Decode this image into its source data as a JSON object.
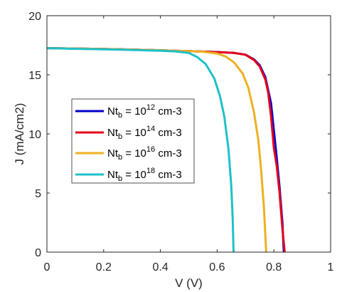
{
  "chart_data": {
    "type": "line",
    "xlabel": "V (V)",
    "ylabel": "J (mA/cm2)",
    "xlim": [
      0,
      1
    ],
    "ylim": [
      0,
      20
    ],
    "xticks": [
      "0",
      "0.2",
      "0.4",
      "0.6",
      "0.8",
      "1"
    ],
    "yticks": [
      "0",
      "5",
      "10",
      "15",
      "20"
    ],
    "grid": false,
    "legend_position": "center-left",
    "series": [
      {
        "name": "Nt_b = 10^12 cm-3",
        "legend": {
          "base": "Nt",
          "sub": "b",
          "eq": " = 10",
          "sup": "12",
          "unit": " cm-3"
        },
        "color": "#0000cc",
        "points": [
          [
            0,
            17.25
          ],
          [
            0.1,
            17.22
          ],
          [
            0.2,
            17.18
          ],
          [
            0.3,
            17.13
          ],
          [
            0.4,
            17.07
          ],
          [
            0.5,
            17.0
          ],
          [
            0.6,
            16.92
          ],
          [
            0.66,
            16.85
          ],
          [
            0.7,
            16.7
          ],
          [
            0.73,
            16.3
          ],
          [
            0.75,
            15.8
          ],
          [
            0.77,
            14.8
          ],
          [
            0.79,
            12.6
          ],
          [
            0.8,
            10.3
          ],
          [
            0.81,
            8.0
          ],
          [
            0.82,
            5.5
          ],
          [
            0.83,
            2.5
          ],
          [
            0.835,
            0
          ]
        ]
      },
      {
        "name": "Nt_b = 10^14 cm-3",
        "legend": {
          "base": "Nt",
          "sub": "b",
          "eq": " = 10",
          "sup": "14",
          "unit": " cm-3"
        },
        "color": "#e6001a",
        "points": [
          [
            0,
            17.25
          ],
          [
            0.1,
            17.22
          ],
          [
            0.2,
            17.18
          ],
          [
            0.3,
            17.13
          ],
          [
            0.4,
            17.07
          ],
          [
            0.5,
            17.0
          ],
          [
            0.6,
            16.92
          ],
          [
            0.66,
            16.85
          ],
          [
            0.7,
            16.7
          ],
          [
            0.73,
            16.25
          ],
          [
            0.75,
            15.7
          ],
          [
            0.77,
            14.6
          ],
          [
            0.78,
            13.5
          ],
          [
            0.79,
            11.5
          ],
          [
            0.8,
            8.8
          ],
          [
            0.81,
            7.3
          ],
          [
            0.82,
            5.0
          ],
          [
            0.83,
            2.0
          ],
          [
            0.838,
            0
          ]
        ]
      },
      {
        "name": "Nt_b = 10^16 cm-3",
        "legend": {
          "base": "Nt",
          "sub": "b",
          "eq": " = 10",
          "sup": "16",
          "unit": " cm-3"
        },
        "color": "#edb120",
        "points": [
          [
            0,
            17.25
          ],
          [
            0.1,
            17.22
          ],
          [
            0.2,
            17.18
          ],
          [
            0.3,
            17.13
          ],
          [
            0.4,
            17.07
          ],
          [
            0.5,
            17.0
          ],
          [
            0.55,
            16.95
          ],
          [
            0.6,
            16.8
          ],
          [
            0.63,
            16.55
          ],
          [
            0.66,
            16.05
          ],
          [
            0.69,
            15.1
          ],
          [
            0.71,
            13.9
          ],
          [
            0.73,
            11.8
          ],
          [
            0.745,
            9.5
          ],
          [
            0.755,
            7.0
          ],
          [
            0.765,
            3.8
          ],
          [
            0.773,
            0
          ]
        ]
      },
      {
        "name": "Nt_b = 10^18 cm-3",
        "legend": {
          "base": "Nt",
          "sub": "b",
          "eq": " = 10",
          "sup": "18",
          "unit": " cm-3"
        },
        "color": "#1ec0c8",
        "points": [
          [
            0,
            17.25
          ],
          [
            0.1,
            17.2
          ],
          [
            0.2,
            17.15
          ],
          [
            0.3,
            17.1
          ],
          [
            0.4,
            17.03
          ],
          [
            0.45,
            16.98
          ],
          [
            0.5,
            16.85
          ],
          [
            0.53,
            16.5
          ],
          [
            0.56,
            15.9
          ],
          [
            0.59,
            14.7
          ],
          [
            0.61,
            13.2
          ],
          [
            0.625,
            11.5
          ],
          [
            0.64,
            8.7
          ],
          [
            0.65,
            5.5
          ],
          [
            0.655,
            2.8
          ],
          [
            0.658,
            0
          ]
        ]
      }
    ]
  }
}
